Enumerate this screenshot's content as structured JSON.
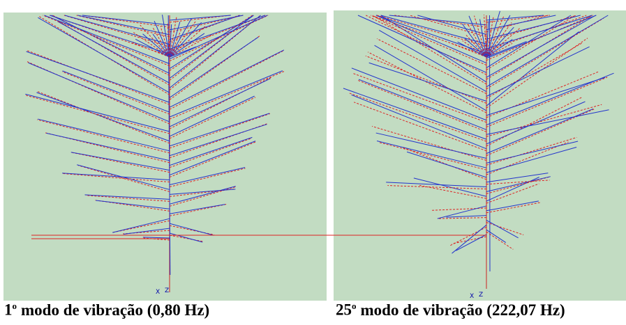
{
  "panels": [
    {
      "caption": {
        "number": "1",
        "superscript": "o",
        "text": "modo de vibração (0,80 Hz)"
      },
      "axis_labels": [
        "X",
        "Z"
      ]
    },
    {
      "caption": {
        "number": "25",
        "superscript": "o",
        "text": "modo de vibração (222,07 Hz)"
      },
      "axis_labels": [
        "X",
        "Z"
      ]
    }
  ]
}
